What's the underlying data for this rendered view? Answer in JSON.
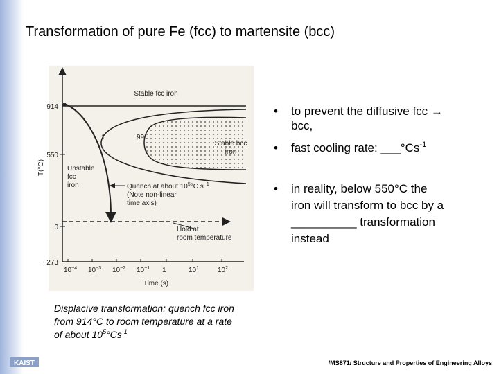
{
  "title": "Transformation of pure Fe (fcc) to martensite (bcc)",
  "bullets": [
    {
      "lines": [
        "to prevent the diffusive fcc →",
        "bcc,"
      ]
    },
    {
      "lines": [
        "fast cooling rate: ___°Cs"
      ],
      "sup": "-1"
    },
    {
      "lines": [
        "in reality, below 550°C the",
        "iron will transform to bcc by a",
        "__________ transformation",
        "instead"
      ]
    }
  ],
  "figure": {
    "y_label": "T(°C)",
    "x_label": "Time (s)",
    "y_ticks": [
      "914",
      "550",
      "0",
      "−273"
    ],
    "x_ticks": [
      {
        "base": "10",
        "exp": "−4"
      },
      {
        "base": "10",
        "exp": "−3"
      },
      {
        "base": "10",
        "exp": "−2"
      },
      {
        "base": "10",
        "exp": "−1"
      },
      {
        "base": "1"
      },
      {
        "base": "10",
        "exp": "1"
      },
      {
        "base": "10",
        "exp": "2"
      }
    ],
    "stable_fcc": "Stable fcc iron",
    "stable_bcc": [
      "Stable bcc",
      "iron"
    ],
    "unstable_fcc": [
      "Unstable",
      "fcc",
      "iron"
    ],
    "curve_1": "1",
    "curve_99": "99",
    "quench": {
      "text": "Quench at about 10",
      "exp": "5",
      "unit": "°C s",
      "unit_exp": "−1",
      "notes": [
        "(Note non-linear",
        "time axis)"
      ]
    },
    "hold": [
      "Hold at",
      "room temperature"
    ]
  },
  "caption": {
    "lines": [
      "Displacive transformation: quench fcc iron",
      "from 914°C to room temperature at a rate"
    ],
    "last": "of about 10",
    "exp": "5",
    "unit": "°Cs",
    "unit_exp": "-1"
  },
  "footer": "/MS871/ Structure and Properties of Engineering Alloys",
  "logo": "KAIST"
}
